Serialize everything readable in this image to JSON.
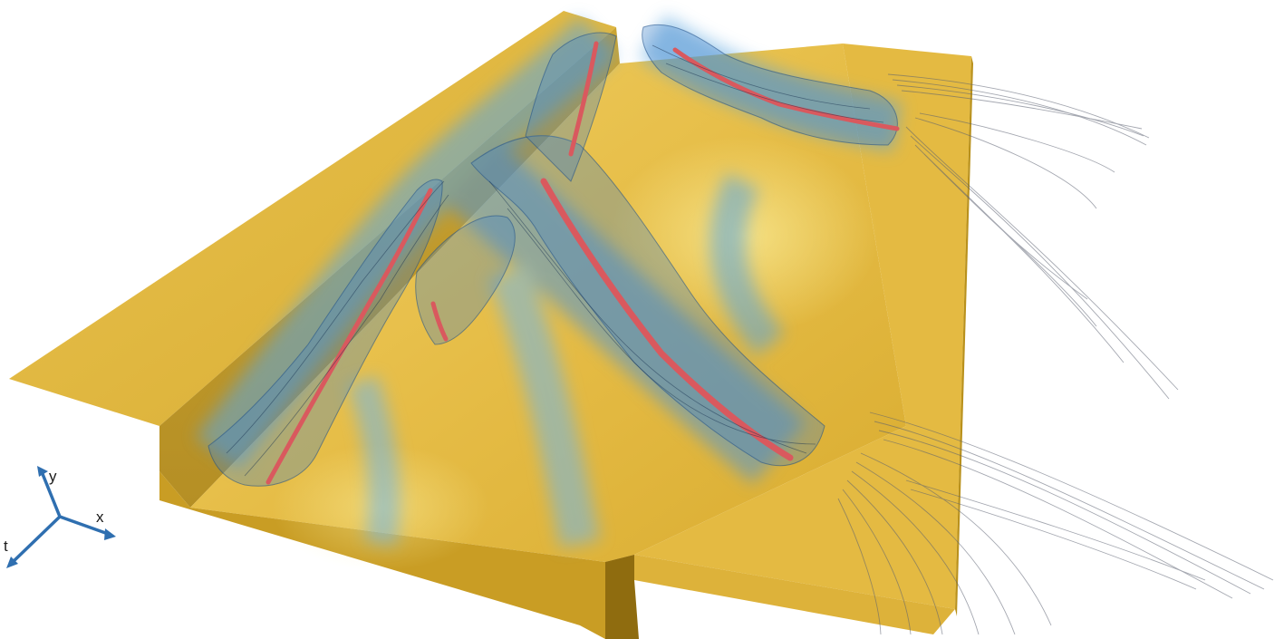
{
  "scene": {
    "background": "#ffffff",
    "colors": {
      "plate": "#e2b945",
      "plate_dark": "#c79a22",
      "plate_light": "#f1d36a",
      "plate_side": "#b98f1d",
      "vortex_blue": "#3f7fc6",
      "vortex_glow": "#6fb6ea",
      "core_line": "#d9595e",
      "pathline": "#5a6070",
      "axis_color": "#2f6fb0"
    }
  },
  "axes": {
    "x_label": "x",
    "y_label": "y",
    "t_label": "t"
  }
}
